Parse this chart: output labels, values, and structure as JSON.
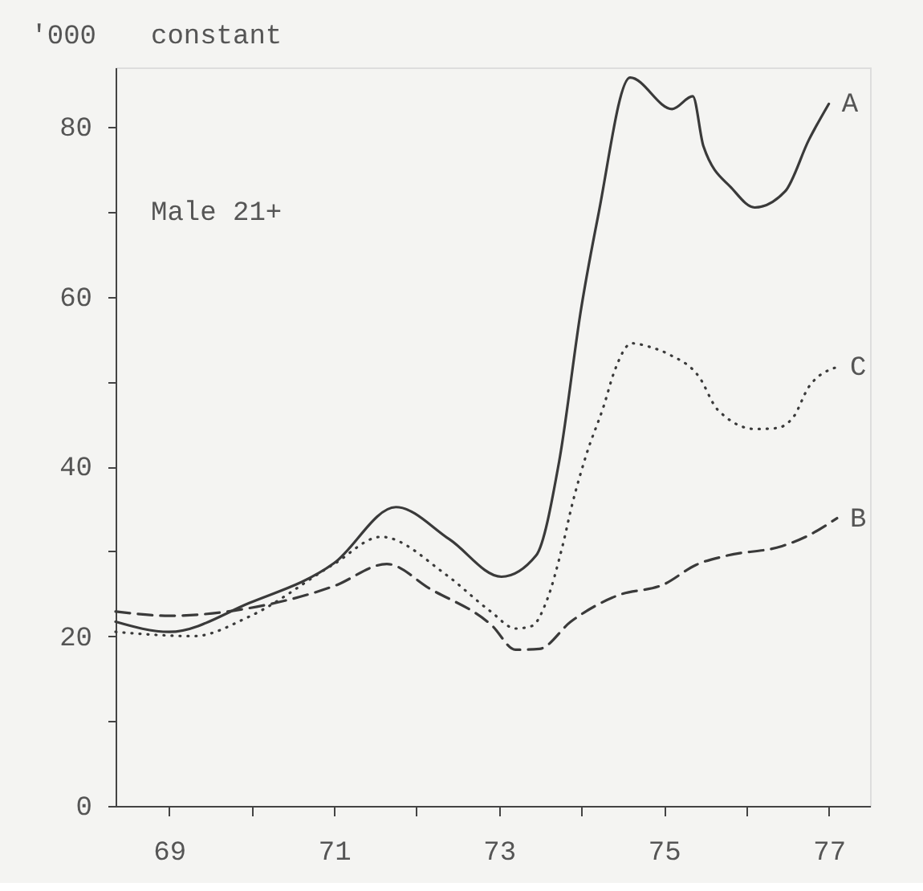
{
  "chart_data": {
    "type": "line",
    "ylabel": "'000",
    "annotations": [
      "constant",
      "Male 21+"
    ],
    "xlim": [
      68.35,
      77.5
    ],
    "xticks": [
      69,
      {
        "value": 70,
        "label": null
      },
      71,
      {
        "value": 72,
        "label": null
      },
      73,
      {
        "value": 74,
        "label": null
      },
      75,
      {
        "value": 76,
        "label": null
      },
      77
    ],
    "ylim": [
      0,
      87
    ],
    "yticks": [
      0,
      {
        "value": 10,
        "label": null
      },
      20,
      {
        "value": 30,
        "label": null
      },
      40,
      {
        "value": 50,
        "label": null
      },
      60,
      {
        "value": 70,
        "label": null
      },
      80
    ],
    "grid": false,
    "marker": "none",
    "series": [
      {
        "name": "A",
        "color": "#3a3a3a",
        "line_style": "solid",
        "x": [
          68.35,
          69,
          69.97,
          71.0,
          71.75,
          72.4,
          73.03,
          73.45,
          73.73,
          74.0,
          74.2,
          74.59,
          75.1,
          75.35,
          75.48,
          75.83,
          76.1,
          76.47,
          76.76,
          77.0
        ],
        "values": [
          21.7,
          20.5,
          23.9,
          28.6,
          35.2,
          31.4,
          27.0,
          29.5,
          40.6,
          58.8,
          69.4,
          85.8,
          82.1,
          83.6,
          77.7,
          72.7,
          70.5,
          72.4,
          78.5,
          82.7
        ]
      },
      {
        "name": "C",
        "color": "#3a3a3a",
        "line_style": "dotted",
        "x": [
          68.35,
          69.3,
          69.97,
          71.0,
          71.57,
          72.35,
          72.9,
          73.2,
          73.4,
          73.58,
          73.77,
          73.89,
          74.06,
          74.27,
          74.4,
          74.61,
          74.82,
          75.06,
          75.43,
          75.65,
          76.11,
          76.36,
          76.57,
          76.76,
          77.1
        ],
        "values": [
          20.5,
          20.0,
          22.3,
          28.5,
          31.7,
          27.3,
          22.9,
          20.9,
          21.2,
          24.2,
          30.6,
          35.6,
          41.4,
          47.1,
          51.2,
          54.5,
          54.1,
          53.2,
          50.5,
          46.7,
          44.4,
          44.5,
          45.8,
          49.4,
          51.7
        ]
      },
      {
        "name": "B",
        "color": "#3a3a3a",
        "line_style": "dashed",
        "x": [
          68.35,
          69,
          69.97,
          71.0,
          71.64,
          72.16,
          72.92,
          73.2,
          73.49,
          73.87,
          74.44,
          75.0,
          75.39,
          75.77,
          76.43,
          76.72,
          77.1
        ],
        "values": [
          22.9,
          22.4,
          23.3,
          25.9,
          28.5,
          25.6,
          21.2,
          18.4,
          18.5,
          21.7,
          24.8,
          26.1,
          28.4,
          29.5,
          30.6,
          31.7,
          33.9
        ]
      }
    ]
  }
}
